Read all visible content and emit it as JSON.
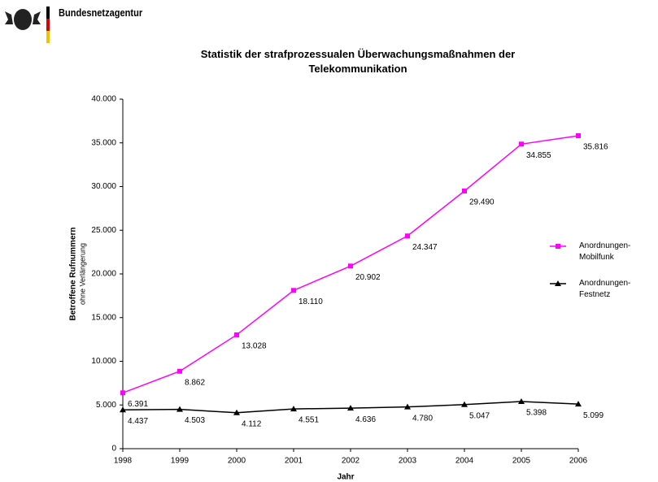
{
  "header": {
    "brand": "Bundesnetzagentur"
  },
  "chart_data": {
    "type": "line",
    "title": "Statistik der strafprozessualen Überwachungsmaßnahmen der Telekommunikation",
    "y_label": "Betroffene Rufnummern",
    "y_sublabel": "ohne Verlängerung",
    "x_label": "Jahr",
    "categories": [
      "1998",
      "1999",
      "2000",
      "2001",
      "2002",
      "2003",
      "2004",
      "2005",
      "2006"
    ],
    "series": [
      {
        "name": "Anordnungen-Mobilfunk",
        "color": "#ff00ff",
        "marker": "square",
        "values": [
          6391,
          8862,
          13028,
          18110,
          20902,
          24347,
          29490,
          34855,
          35816
        ],
        "value_labels": [
          "6.391",
          "8.862",
          "13.028",
          "18.110",
          "20.902",
          "24.347",
          "29.490",
          "34.855",
          "35.816"
        ]
      },
      {
        "name": "Anordnungen-Festnetz",
        "color": "#000000",
        "marker": "triangle",
        "values": [
          4437,
          4503,
          4112,
          4551,
          4636,
          4780,
          5047,
          5398,
          5099
        ],
        "value_labels": [
          "4.437",
          "4.503",
          "4.112",
          "4.551",
          "4.636",
          "4.780",
          "5.047",
          "5.398",
          "5.099"
        ]
      }
    ],
    "ylim": [
      0,
      40000
    ],
    "yticks": [
      0,
      {
        "value": 5000,
        "label": "5.000"
      },
      {
        "value": 10000,
        "label": "10.000"
      },
      {
        "value": 15000,
        "label": "15.000"
      },
      {
        "value": 20000,
        "label": "20.000"
      },
      {
        "value": 25000,
        "label": "25.000"
      },
      {
        "value": 30000,
        "label": "30.000"
      },
      {
        "value": 35000,
        "label": "35.000"
      },
      {
        "value": 40000,
        "label": "40.000"
      }
    ],
    "grid": false,
    "legend": "right"
  }
}
